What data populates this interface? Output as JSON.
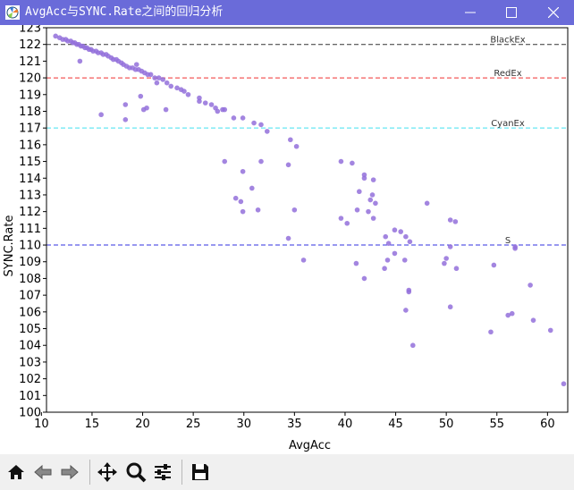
{
  "window": {
    "title": "AvgAcc与SYNC.Rate之间的回归分析"
  },
  "toolbar": {
    "buttons": [
      {
        "name": "home-button",
        "icon": "home-icon"
      },
      {
        "name": "back-button",
        "icon": "arrow-left-icon"
      },
      {
        "name": "forward-button",
        "icon": "arrow-right-icon"
      },
      {
        "name": "pan-button",
        "icon": "move-icon"
      },
      {
        "name": "zoom-button",
        "icon": "magnifier-icon"
      },
      {
        "name": "configure-subplots-button",
        "icon": "sliders-icon"
      },
      {
        "name": "save-button",
        "icon": "floppy-disk-icon"
      }
    ]
  },
  "chart_data": {
    "type": "scatter",
    "title": "",
    "xlabel": "AvgAcc",
    "ylabel": "SYNC.Rate",
    "xlim": [
      10.5,
      62
    ],
    "ylim": [
      100,
      123
    ],
    "xticks": [
      10,
      15,
      20,
      25,
      30,
      35,
      40,
      45,
      50,
      55,
      60
    ],
    "yticks": [
      100,
      101,
      102,
      103,
      104,
      105,
      106,
      107,
      108,
      109,
      110,
      111,
      112,
      113,
      114,
      115,
      116,
      117,
      118,
      119,
      120,
      121,
      122,
      123
    ],
    "grid": false,
    "legend": "none",
    "point_color": "#9370db",
    "reference_lines": [
      {
        "label": "BlackEx",
        "y": 122,
        "color": "#333333"
      },
      {
        "label": "RedEx",
        "y": 120,
        "color": "#f03030"
      },
      {
        "label": "CyanEx",
        "y": 117,
        "color": "#40e0f0"
      },
      {
        "label": "S",
        "y": 110,
        "color": "#3030e0"
      }
    ],
    "points": [
      [
        11.4,
        122.5
      ],
      [
        11.8,
        122.4
      ],
      [
        12.1,
        122.3
      ],
      [
        12.4,
        122.3
      ],
      [
        12.6,
        122.2
      ],
      [
        12.9,
        122.2
      ],
      [
        13.1,
        122.1
      ],
      [
        13.3,
        122.1
      ],
      [
        13.5,
        122.0
      ],
      [
        13.7,
        122.0
      ],
      [
        13.9,
        121.9
      ],
      [
        14.1,
        121.9
      ],
      [
        14.3,
        121.8
      ],
      [
        14.5,
        121.8
      ],
      [
        14.7,
        121.7
      ],
      [
        14.9,
        121.7
      ],
      [
        15.1,
        121.6
      ],
      [
        15.4,
        121.6
      ],
      [
        15.6,
        121.5
      ],
      [
        15.9,
        121.5
      ],
      [
        16.1,
        121.4
      ],
      [
        16.4,
        121.4
      ],
      [
        16.6,
        121.3
      ],
      [
        16.9,
        121.2
      ],
      [
        17.1,
        121.1
      ],
      [
        17.4,
        121.1
      ],
      [
        17.6,
        121.0
      ],
      [
        17.9,
        120.9
      ],
      [
        18.1,
        120.8
      ],
      [
        18.4,
        120.7
      ],
      [
        18.7,
        120.6
      ],
      [
        19.0,
        120.6
      ],
      [
        19.3,
        120.5
      ],
      [
        19.6,
        120.5
      ],
      [
        19.9,
        120.4
      ],
      [
        20.2,
        120.3
      ],
      [
        20.5,
        120.2
      ],
      [
        20.8,
        120.2
      ],
      [
        21.2,
        120.0
      ],
      [
        21.6,
        120.0
      ],
      [
        22.0,
        119.9
      ],
      [
        22.4,
        119.7
      ],
      [
        22.8,
        119.5
      ],
      [
        23.4,
        119.4
      ],
      [
        23.8,
        119.3
      ],
      [
        24.1,
        119.2
      ],
      [
        24.5,
        119.0
      ],
      [
        25.6,
        118.8
      ],
      [
        25.6,
        118.6
      ],
      [
        26.2,
        118.5
      ],
      [
        26.8,
        118.4
      ],
      [
        27.2,
        118.2
      ],
      [
        27.4,
        118.0
      ],
      [
        27.9,
        118.1
      ],
      [
        28.1,
        118.1
      ],
      [
        13.8,
        121.0
      ],
      [
        15.9,
        117.8
      ],
      [
        18.3,
        118.4
      ],
      [
        18.3,
        117.5
      ],
      [
        19.4,
        120.8
      ],
      [
        19.8,
        118.9
      ],
      [
        20.1,
        118.1
      ],
      [
        20.4,
        118.2
      ],
      [
        21.4,
        119.7
      ],
      [
        22.3,
        118.1
      ],
      [
        29.0,
        117.6
      ],
      [
        29.9,
        117.6
      ],
      [
        31.0,
        117.3
      ],
      [
        31.7,
        117.2
      ],
      [
        32.3,
        116.8
      ],
      [
        34.6,
        116.3
      ],
      [
        35.2,
        115.9
      ],
      [
        28.1,
        115.0
      ],
      [
        29.9,
        114.4
      ],
      [
        31.7,
        115.0
      ],
      [
        30.8,
        113.4
      ],
      [
        29.2,
        112.8
      ],
      [
        29.7,
        112.6
      ],
      [
        29.9,
        112.0
      ],
      [
        31.4,
        112.1
      ],
      [
        34.4,
        114.8
      ],
      [
        35.0,
        112.1
      ],
      [
        34.4,
        110.4
      ],
      [
        35.9,
        109.1
      ],
      [
        39.6,
        115.0
      ],
      [
        40.7,
        114.9
      ],
      [
        41.9,
        114.2
      ],
      [
        41.9,
        114.0
      ],
      [
        42.8,
        113.9
      ],
      [
        41.4,
        113.2
      ],
      [
        42.7,
        113.0
      ],
      [
        42.5,
        112.7
      ],
      [
        43.0,
        112.5
      ],
      [
        41.2,
        112.1
      ],
      [
        42.3,
        112.0
      ],
      [
        39.6,
        111.6
      ],
      [
        40.2,
        111.3
      ],
      [
        42.8,
        111.6
      ],
      [
        44.0,
        110.5
      ],
      [
        44.9,
        110.9
      ],
      [
        45.5,
        110.8
      ],
      [
        46.0,
        110.5
      ],
      [
        46.4,
        110.2
      ],
      [
        44.3,
        110.1
      ],
      [
        48.1,
        112.5
      ],
      [
        50.4,
        111.5
      ],
      [
        50.9,
        111.4
      ],
      [
        50.4,
        109.9
      ],
      [
        50.0,
        109.2
      ],
      [
        49.8,
        108.9
      ],
      [
        51.0,
        108.6
      ],
      [
        44.9,
        109.5
      ],
      [
        44.2,
        109.1
      ],
      [
        45.9,
        109.1
      ],
      [
        43.9,
        108.6
      ],
      [
        41.1,
        108.9
      ],
      [
        41.9,
        108.0
      ],
      [
        46.3,
        107.3
      ],
      [
        46.3,
        107.2
      ],
      [
        46.0,
        106.1
      ],
      [
        46.7,
        104.0
      ],
      [
        50.4,
        106.3
      ],
      [
        54.7,
        108.8
      ],
      [
        56.8,
        109.8
      ],
      [
        56.8,
        109.9
      ],
      [
        58.3,
        107.6
      ],
      [
        56.1,
        105.8
      ],
      [
        56.5,
        105.9
      ],
      [
        58.6,
        105.5
      ],
      [
        54.4,
        104.8
      ],
      [
        60.3,
        104.9
      ],
      [
        61.6,
        101.7
      ]
    ]
  }
}
